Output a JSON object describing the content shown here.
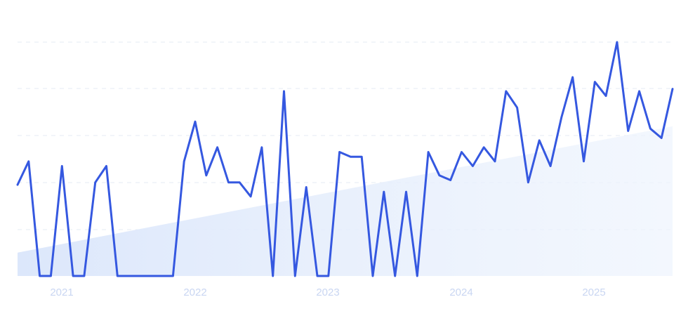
{
  "chart_data": {
    "type": "line",
    "title": "",
    "xlabel": "",
    "ylabel": "",
    "x_tick_labels": [
      "2021",
      "2022",
      "2023",
      "2024",
      "2025"
    ],
    "ylim": [
      0,
      100
    ],
    "grid": true,
    "legend": "none",
    "colors": {
      "line": "#3558e0",
      "trend_fill": "#dfe9fb",
      "grid": "#e6ebf3",
      "tick_label": "#c9d6f2"
    },
    "series": [
      {
        "values": [
          39,
          49,
          0,
          0,
          47,
          0,
          0,
          40,
          47,
          0,
          0,
          0,
          0,
          0,
          0,
          49,
          66,
          43,
          55,
          40,
          40,
          34,
          55,
          0,
          79,
          0,
          38,
          0,
          0,
          53,
          51,
          51,
          0,
          36,
          0,
          36,
          0,
          53,
          43,
          41,
          53,
          47,
          55,
          49,
          79,
          72,
          40,
          58,
          47,
          68,
          85,
          49,
          83,
          77,
          100,
          62,
          79,
          63,
          59,
          80
        ]
      }
    ],
    "trend": {
      "start": 10,
      "end": 64
    }
  }
}
